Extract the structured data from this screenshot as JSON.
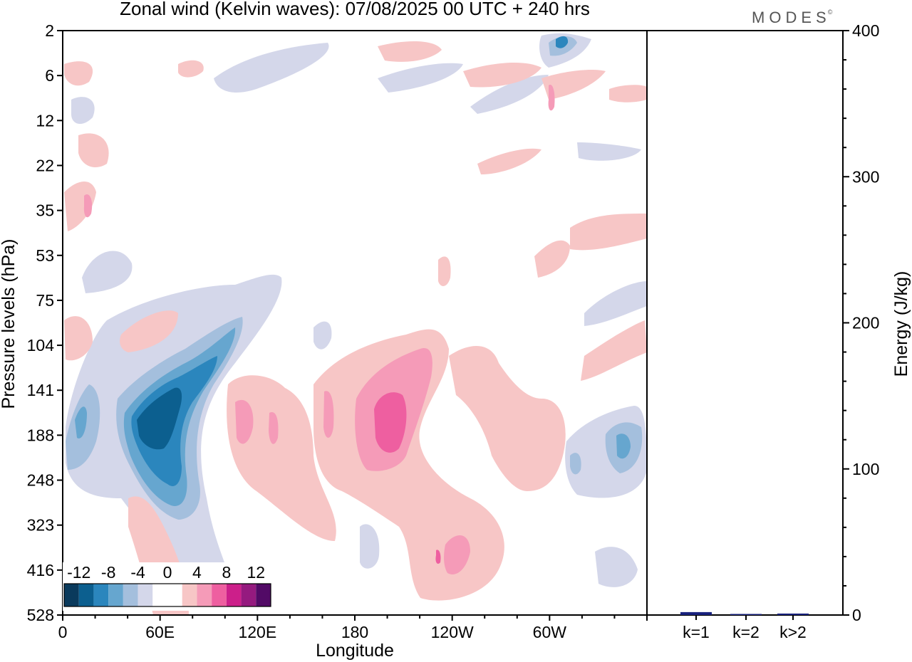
{
  "title": "Zonal wind (Kelvin waves):  07/08/2025  00 UTC  + 240 hrs",
  "logo": "MODES",
  "logo_mark": "©",
  "chart_data": [
    {
      "type": "heatmap",
      "title": "Zonal wind (Kelvin waves)",
      "xlabel": "Longitude",
      "ylabel": "Pressure levels (hPa)",
      "x_ticks": [
        "0",
        "60E",
        "120E",
        "180",
        "120W",
        "60W"
      ],
      "x_tick_degrees": [
        0,
        60,
        120,
        180,
        240,
        300
      ],
      "xlim": [
        0,
        360
      ],
      "y_ticks": [
        "2",
        "6",
        "12",
        "22",
        "35",
        "53",
        "75",
        "104",
        "141",
        "188",
        "248",
        "323",
        "416",
        "528"
      ],
      "colorbar": {
        "labels": [
          "-12",
          "-8",
          "-4",
          "0",
          "4",
          "8",
          "12"
        ],
        "colors": [
          "#0a3a5c",
          "#0c5f8f",
          "#2b86bd",
          "#66a6cf",
          "#a4bfdd",
          "#d4d7ea",
          "#ffffff",
          "#ffffff",
          "#f7c6c6",
          "#f59bb8",
          "#ee5fa0",
          "#cc1f8a",
          "#951a7f",
          "#520a66"
        ]
      },
      "features": [
        {
          "name": "easterly-core",
          "lon": 45,
          "level": "141-188",
          "value": -12
        },
        {
          "name": "easterly-west",
          "lon": 12,
          "level": "188",
          "value": -8
        },
        {
          "name": "westerly-core",
          "lon": 199,
          "level": "141-188",
          "value": 8
        },
        {
          "name": "westerly-east",
          "lon": 230,
          "level": "416",
          "value": 8
        },
        {
          "name": "easterly-far-east",
          "lon": 346,
          "level": "188",
          "value": -8
        },
        {
          "name": "upper-jet-streak",
          "lon": 305,
          "level": "2",
          "value": -8
        }
      ]
    },
    {
      "type": "bar",
      "title": "Energy",
      "ylabel": "Energy (J/kg)",
      "categories": [
        "k=1",
        "k=2",
        "k>2"
      ],
      "values": [
        2,
        0.4,
        1
      ],
      "ylim": [
        0,
        400
      ],
      "y_ticks": [
        "0",
        "100",
        "200",
        "300",
        "400"
      ],
      "colors": [
        "#1a237e",
        "#1a237e",
        "#1a237e"
      ]
    }
  ]
}
